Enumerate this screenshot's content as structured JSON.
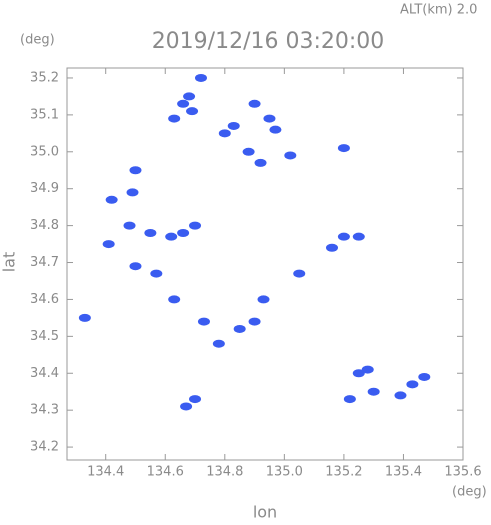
{
  "chart_data": {
    "type": "scatter",
    "title": "2019/12/16 03:20:00",
    "subtitle": "ALT(km) 2.0",
    "xlabel": "lon",
    "ylabel": "lat",
    "xunit": "(deg)",
    "yunit": "(deg)",
    "xlim": [
      134.27,
      135.6
    ],
    "ylim": [
      34.165,
      35.227
    ],
    "xticks": [
      134.4,
      134.6,
      134.8,
      {
        "value": 135,
        "label": "135.0"
      },
      135.2,
      135.4,
      135.6
    ],
    "yticks": [
      34.2,
      34.3,
      34.4,
      34.5,
      34.6,
      34.7,
      34.8,
      34.9,
      {
        "value": 35,
        "label": "35.0"
      },
      35.1,
      35.2
    ],
    "series": [
      {
        "color": "#3a5cf0",
        "x": [
          134.72,
          134.68,
          134.66,
          134.63,
          134.69,
          134.8,
          134.83,
          134.9,
          134.95,
          134.97,
          135.02,
          135.2,
          134.88,
          134.92,
          134.5,
          134.49,
          134.42,
          134.41,
          134.48,
          134.55,
          134.62,
          134.66,
          134.7,
          135.25,
          135.2,
          135.16,
          134.5,
          134.57,
          134.33,
          134.73,
          134.78,
          134.85,
          134.9,
          134.7,
          134.67,
          135.25,
          135.22,
          135.3,
          135.28,
          135.43,
          135.47,
          135.39,
          134.63,
          134.93,
          135.05
        ],
        "values": [
          35.2,
          35.15,
          35.13,
          35.09,
          35.11,
          35.05,
          35.07,
          35.13,
          35.09,
          35.06,
          34.99,
          35.01,
          35.0,
          34.97,
          34.95,
          34.89,
          34.87,
          34.75,
          34.8,
          34.78,
          34.77,
          34.78,
          34.8,
          34.77,
          34.77,
          34.74,
          34.69,
          34.67,
          34.55,
          34.54,
          34.48,
          34.52,
          34.54,
          34.33,
          34.31,
          34.4,
          34.33,
          34.35,
          34.41,
          34.37,
          34.39,
          34.34,
          34.6,
          34.6,
          34.67
        ]
      }
    ]
  }
}
